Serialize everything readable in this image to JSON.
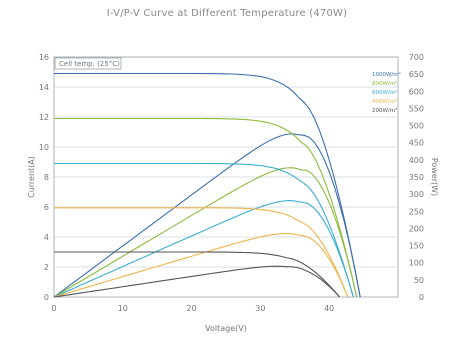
{
  "chart_data": {
    "type": "line",
    "title": "I-V/P-V Curve at Different Temperature (470W)",
    "xlabel": "Voltage(V)",
    "ylabel_left": "Current(A)",
    "ylabel_right": "Power(W)",
    "inner_label": "Cell temp. (25°C)",
    "xlim": [
      0,
      50
    ],
    "ylim_left": [
      0,
      16
    ],
    "ylim_right": [
      0,
      700
    ],
    "x_ticks": [
      0,
      10,
      20,
      30,
      40
    ],
    "y_ticks_left": [
      0,
      2,
      4,
      6,
      8,
      10,
      12,
      14,
      16
    ],
    "y_ticks_right": [
      0,
      50,
      100,
      150,
      200,
      250,
      300,
      350,
      400,
      450,
      500,
      550,
      600,
      650,
      700
    ],
    "grid": "horizontal",
    "legend_position": "top-right",
    "legend_entries": [
      "1000W/m²",
      "800W/m²",
      "600W/m²",
      "400W/m²",
      "200W/m²"
    ],
    "series": [
      {
        "name": "1000W/m²",
        "color": "#3d6fb0",
        "isc": 14.9,
        "pmax": 470,
        "vmp": 36.0,
        "voc": 44.5
      },
      {
        "name": "800W/m²",
        "color": "#8cbb3c",
        "isc": 11.9,
        "pmax": 370,
        "vmp": 36.0,
        "voc": 44.0
      },
      {
        "name": "600W/m²",
        "color": "#3aaed0",
        "isc": 8.9,
        "pmax": 275,
        "vmp": 36.0,
        "voc": 43.5
      },
      {
        "name": "400W/m²",
        "color": "#f0b44c",
        "isc": 5.95,
        "pmax": 178,
        "vmp": 36.0,
        "voc": 42.7
      },
      {
        "name": "200W/m²",
        "color": "#555555",
        "isc": 3.0,
        "pmax": 88,
        "vmp": 34.0,
        "voc": 41.5
      }
    ]
  }
}
